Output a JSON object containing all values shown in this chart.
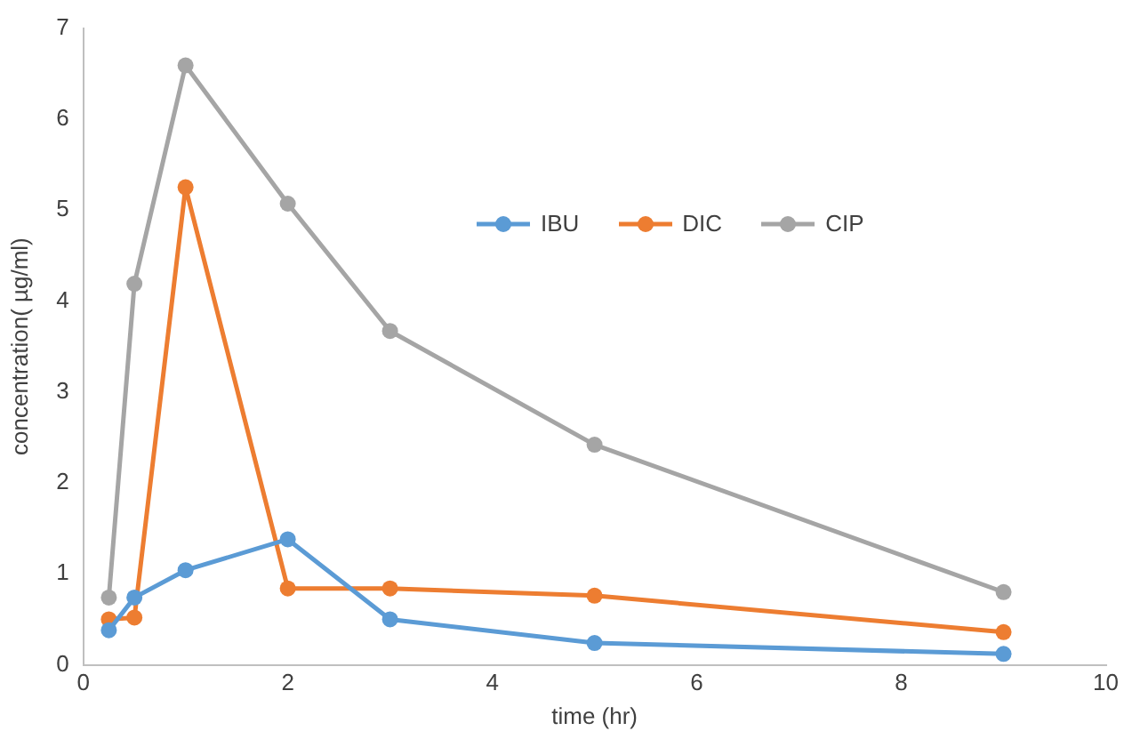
{
  "chart_data": {
    "type": "line",
    "xlabel": "time (hr)",
    "ylabel": "concentration( µg/ml)",
    "x": [
      0.25,
      0.5,
      1,
      2,
      3,
      5,
      9
    ],
    "series": [
      {
        "name": "IBU",
        "color": "#5b9bd5",
        "values": [
          0.38,
          0.74,
          1.04,
          1.38,
          0.5,
          0.24,
          0.12
        ]
      },
      {
        "name": "DIC",
        "color": "#ed7d31",
        "values": [
          0.5,
          0.52,
          5.25,
          0.84,
          0.84,
          0.76,
          0.36
        ]
      },
      {
        "name": "CIP",
        "color": "#a5a5a5",
        "values": [
          0.74,
          4.19,
          6.59,
          5.07,
          3.67,
          2.42,
          0.8
        ]
      }
    ],
    "xlim": [
      0,
      10
    ],
    "xticks": [
      0,
      2,
      4,
      6,
      8,
      10
    ],
    "ylim": [
      0,
      7
    ],
    "yticks": [
      0,
      1,
      2,
      3,
      4,
      5,
      6,
      7
    ],
    "grid": false,
    "legend": "top",
    "marker": "circle",
    "line_style": "solid"
  }
}
